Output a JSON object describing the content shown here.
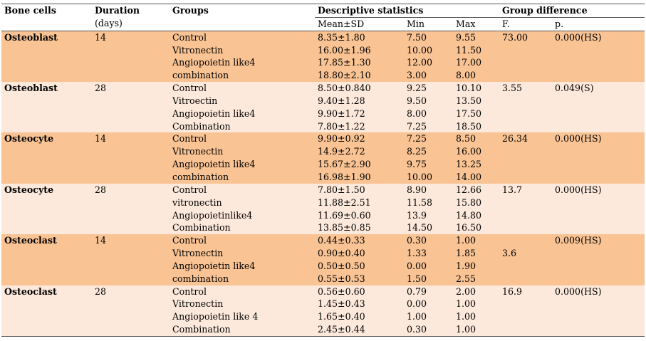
{
  "header": {
    "bone_cells": "Bone cells",
    "duration": "Duration",
    "duration_unit": "(days)",
    "groups": "Groups",
    "descriptive": "Descriptive statistics",
    "group_difference": "Group difference",
    "mean_sd": "Mean±SD",
    "min": "Min",
    "max": "Max",
    "f": "F.",
    "p": "p."
  },
  "blocks": [
    {
      "cell": "Osteoblast",
      "duration": "14",
      "shade": "orange",
      "rows": [
        {
          "group": "Control",
          "mean": "8.35±1.80",
          "min": "7.50",
          "max": "9.55",
          "f": "73.00",
          "p": "0.000(HS)"
        },
        {
          "group": "Vitronectin",
          "mean": "16.00±1.96",
          "min": "10.00",
          "max": "11.50",
          "f": "",
          "p": ""
        },
        {
          "group": "Angiopoietin like4",
          "mean": "17.85±1.30",
          "min": "12.00",
          "max": "17.00",
          "f": "",
          "p": ""
        },
        {
          "group": "combination",
          "mean": "18.80±2.10",
          "min": "3.00",
          "max": "8.00",
          "f": "",
          "p": ""
        }
      ]
    },
    {
      "cell": "Osteoblast",
      "duration": "28",
      "shade": "cream",
      "rows": [
        {
          "group": "Control",
          "mean": "8.50±0.840",
          "min": "9.25",
          "max": "10.10",
          "f": "3.55",
          "p": "0.049(S)"
        },
        {
          "group": "Vitroectin",
          "mean": "9.40±1.28",
          "min": "9.50",
          "max": "13.50",
          "f": "",
          "p": ""
        },
        {
          "group": "Angiopoietin like4",
          "mean": "9.90±1.72",
          "min": "8.00",
          "max": "17.50",
          "f": "",
          "p": ""
        },
        {
          "group": "Combination",
          "mean": "7.80±1.22",
          "min": "7.25",
          "max": "18.50",
          "f": "",
          "p": ""
        }
      ]
    },
    {
      "cell": "Osteocyte",
      "duration": "14",
      "shade": "orange",
      "rows": [
        {
          "group": "Control",
          "mean": "9.90±0.92",
          "min": "7.25",
          "max": "8.50",
          "f": "26.34",
          "p": "0.000(HS)"
        },
        {
          "group": "Vitronectin",
          "mean": "14.9±2.72",
          "min": "8.25",
          "max": "16.00",
          "f": "",
          "p": ""
        },
        {
          "group": "Angiopoietin like4",
          "mean": "15.67±2.90",
          "min": "9.75",
          "max": "13.25",
          "f": "",
          "p": ""
        },
        {
          "group": "combination",
          "mean": "16.98±1.90",
          "min": "10.00",
          "max": "14.00",
          "f": "",
          "p": ""
        }
      ]
    },
    {
      "cell": "Osteocyte",
      "duration": "28",
      "shade": "cream",
      "rows": [
        {
          "group": "Control",
          "mean": "7.80±1.50",
          "min": "8.90",
          "max": "12.66",
          "f": "13.7",
          "p": "0.000(HS)"
        },
        {
          "group": "vitronectin",
          "mean": "11.88±2.51",
          "min": "11.58",
          "max": "15.80",
          "f": "",
          "p": ""
        },
        {
          "group": "Angiopoietinlike4",
          "mean": "11.69±0.60",
          "min": "13.9",
          "max": "14.80",
          "f": "",
          "p": ""
        },
        {
          "group": "Combination",
          "mean": "13.85±0.85",
          "min": "14.50",
          "max": "16.50",
          "f": "",
          "p": ""
        }
      ]
    },
    {
      "cell": "Osteoclast",
      "duration": "14",
      "shade": "orange",
      "rows": [
        {
          "group": "Control",
          "mean": "0.44±0.33",
          "min": "0.30",
          "max": "1.00",
          "f": "",
          "p": "0.009(HS)"
        },
        {
          "group": "Vitronectin",
          "mean": "0.90±0.40",
          "min": "1.33",
          "max": "1.85",
          "f": "3.6",
          "p": ""
        },
        {
          "group": "Angiopoietin like4",
          "mean": "0.50±0.50",
          "min": "0.00",
          "max": "1.90",
          "f": "",
          "p": ""
        },
        {
          "group": "combination",
          "mean": "0.55±0.53",
          "min": "1.50",
          "max": "2.55",
          "f": "",
          "p": ""
        }
      ]
    },
    {
      "cell": "Osteoclast",
      "duration": "28",
      "shade": "cream",
      "rows": [
        {
          "group": "Control",
          "mean": "0.56±0.60",
          "min": "0.79",
          "max": "2.00",
          "f": "16.9",
          "p": "0.000(HS)"
        },
        {
          "group": "Vitronectin",
          "mean": "1.45±0.43",
          "min": "0.00",
          "max": "1.00",
          "f": "",
          "p": ""
        },
        {
          "group": "Angiopoietin like 4",
          "mean": "1.65±0.40",
          "min": "1.00",
          "max": "1.00",
          "f": "",
          "p": ""
        },
        {
          "group": "Combination",
          "mean": "2.45±0.44",
          "min": "0.30",
          "max": "1.00",
          "f": "",
          "p": ""
        }
      ]
    }
  ],
  "colors": {
    "orange": "#f9c393",
    "cream": "#fce9db"
  }
}
